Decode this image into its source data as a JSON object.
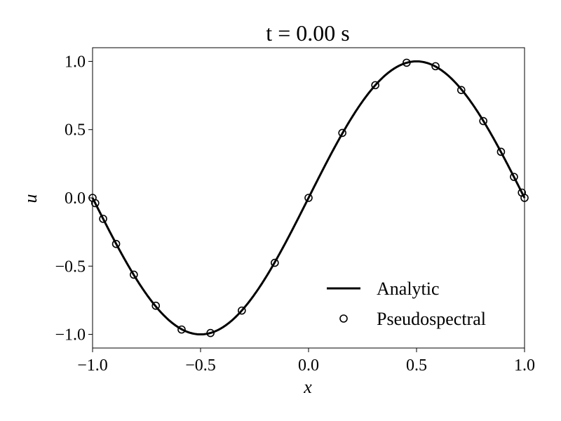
{
  "chart_data": {
    "type": "line",
    "title": "t = 0.00 s",
    "xlabel": "x",
    "ylabel": "u",
    "xlim": [
      -1.0,
      1.0
    ],
    "ylim": [
      -1.1,
      1.1
    ],
    "grid": false,
    "legend_position": "lower-right",
    "x_ticks": [
      -1.0,
      -0.5,
      0.0,
      0.5,
      1.0
    ],
    "x_tick_labels": [
      "−1.0",
      "−0.5",
      "0.0",
      "0.5",
      "1.0"
    ],
    "y_ticks": [
      -1.0,
      -0.5,
      0.0,
      0.5,
      1.0
    ],
    "y_tick_labels": [
      "−1.0",
      "−0.5",
      "0.0",
      "0.5",
      "1.0"
    ],
    "series": [
      {
        "name": "Analytic",
        "style": "line",
        "color": "#000000",
        "function": "sin(pi*x)"
      },
      {
        "name": "Pseudospectral",
        "style": "markers",
        "marker": "circle-open",
        "color": "#000000",
        "x": [
          -1.0,
          -0.9877,
          -0.9511,
          -0.891,
          -0.809,
          -0.7071,
          -0.5878,
          -0.454,
          -0.309,
          -0.1564,
          0.0,
          0.1564,
          0.309,
          0.454,
          0.5878,
          0.7071,
          0.809,
          0.891,
          0.9511,
          0.9877,
          1.0
        ],
        "y": [
          0.0,
          -0.0386,
          -0.1536,
          -0.3375,
          -0.5627,
          -0.7902,
          -0.9644,
          -0.99,
          -0.8257,
          -0.4759,
          0.0,
          0.4759,
          0.8257,
          0.99,
          0.9644,
          0.7902,
          0.5627,
          0.3375,
          0.1536,
          0.0386,
          0.0
        ]
      }
    ]
  }
}
